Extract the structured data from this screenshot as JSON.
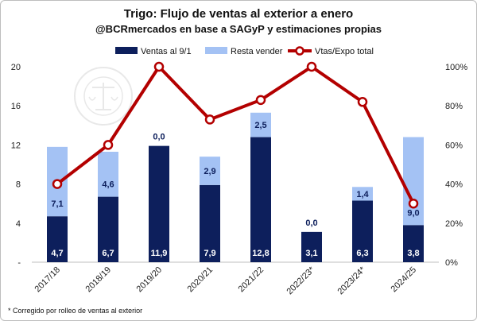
{
  "chart_data": {
    "type": "bar",
    "stacked": true,
    "title": "Trigo: Flujo de ventas al exterior a enero",
    "subtitle": "@BCRmercados en base a SAGyP y estimaciones propias",
    "categories": [
      "2017/18",
      "2018/19",
      "2019/20",
      "2020/21",
      "2021/22",
      "2022/23*",
      "2023/24*",
      "2024/25"
    ],
    "series": [
      {
        "name": "Ventas al 9/1",
        "values": [
          4.7,
          6.7,
          11.9,
          7.9,
          12.8,
          3.1,
          6.3,
          3.8
        ],
        "labels": [
          "4,7",
          "6,7",
          "11,9",
          "7,9",
          "12,8",
          "3,1",
          "6,3",
          "3,8"
        ],
        "color": "#0d1f5c"
      },
      {
        "name": "Resta vender",
        "values": [
          7.1,
          4.6,
          0.0,
          2.9,
          2.5,
          0.0,
          1.4,
          9.0
        ],
        "labels": [
          "7,1",
          "4,6",
          "0,0",
          "2,9",
          "2,5",
          "0,0",
          "1,4",
          "9,0"
        ],
        "color": "#a4c2f4"
      },
      {
        "name": "Vtas/Expo total",
        "type": "line",
        "axis": "right",
        "values": [
          40,
          60,
          100,
          73,
          83,
          100,
          82,
          30
        ],
        "color": "#b30000"
      }
    ],
    "y_left": {
      "ticks": [
        0,
        4,
        8,
        12,
        16,
        20
      ],
      "tick_labels": [
        "-",
        "4",
        "8",
        "12",
        "16",
        "20"
      ],
      "ylim": [
        0,
        20
      ]
    },
    "y_right": {
      "ticks": [
        0,
        20,
        40,
        60,
        80,
        100
      ],
      "tick_labels": [
        "0%",
        "20%",
        "40%",
        "60%",
        "80%",
        "100%"
      ],
      "ylim": [
        0,
        100
      ]
    },
    "legend_position": "top",
    "grid": false
  },
  "footnote": "* Corregido por rolleo de ventas al exterior",
  "watermark": "BOLSA DE COMERCIO DE ROSARIO"
}
